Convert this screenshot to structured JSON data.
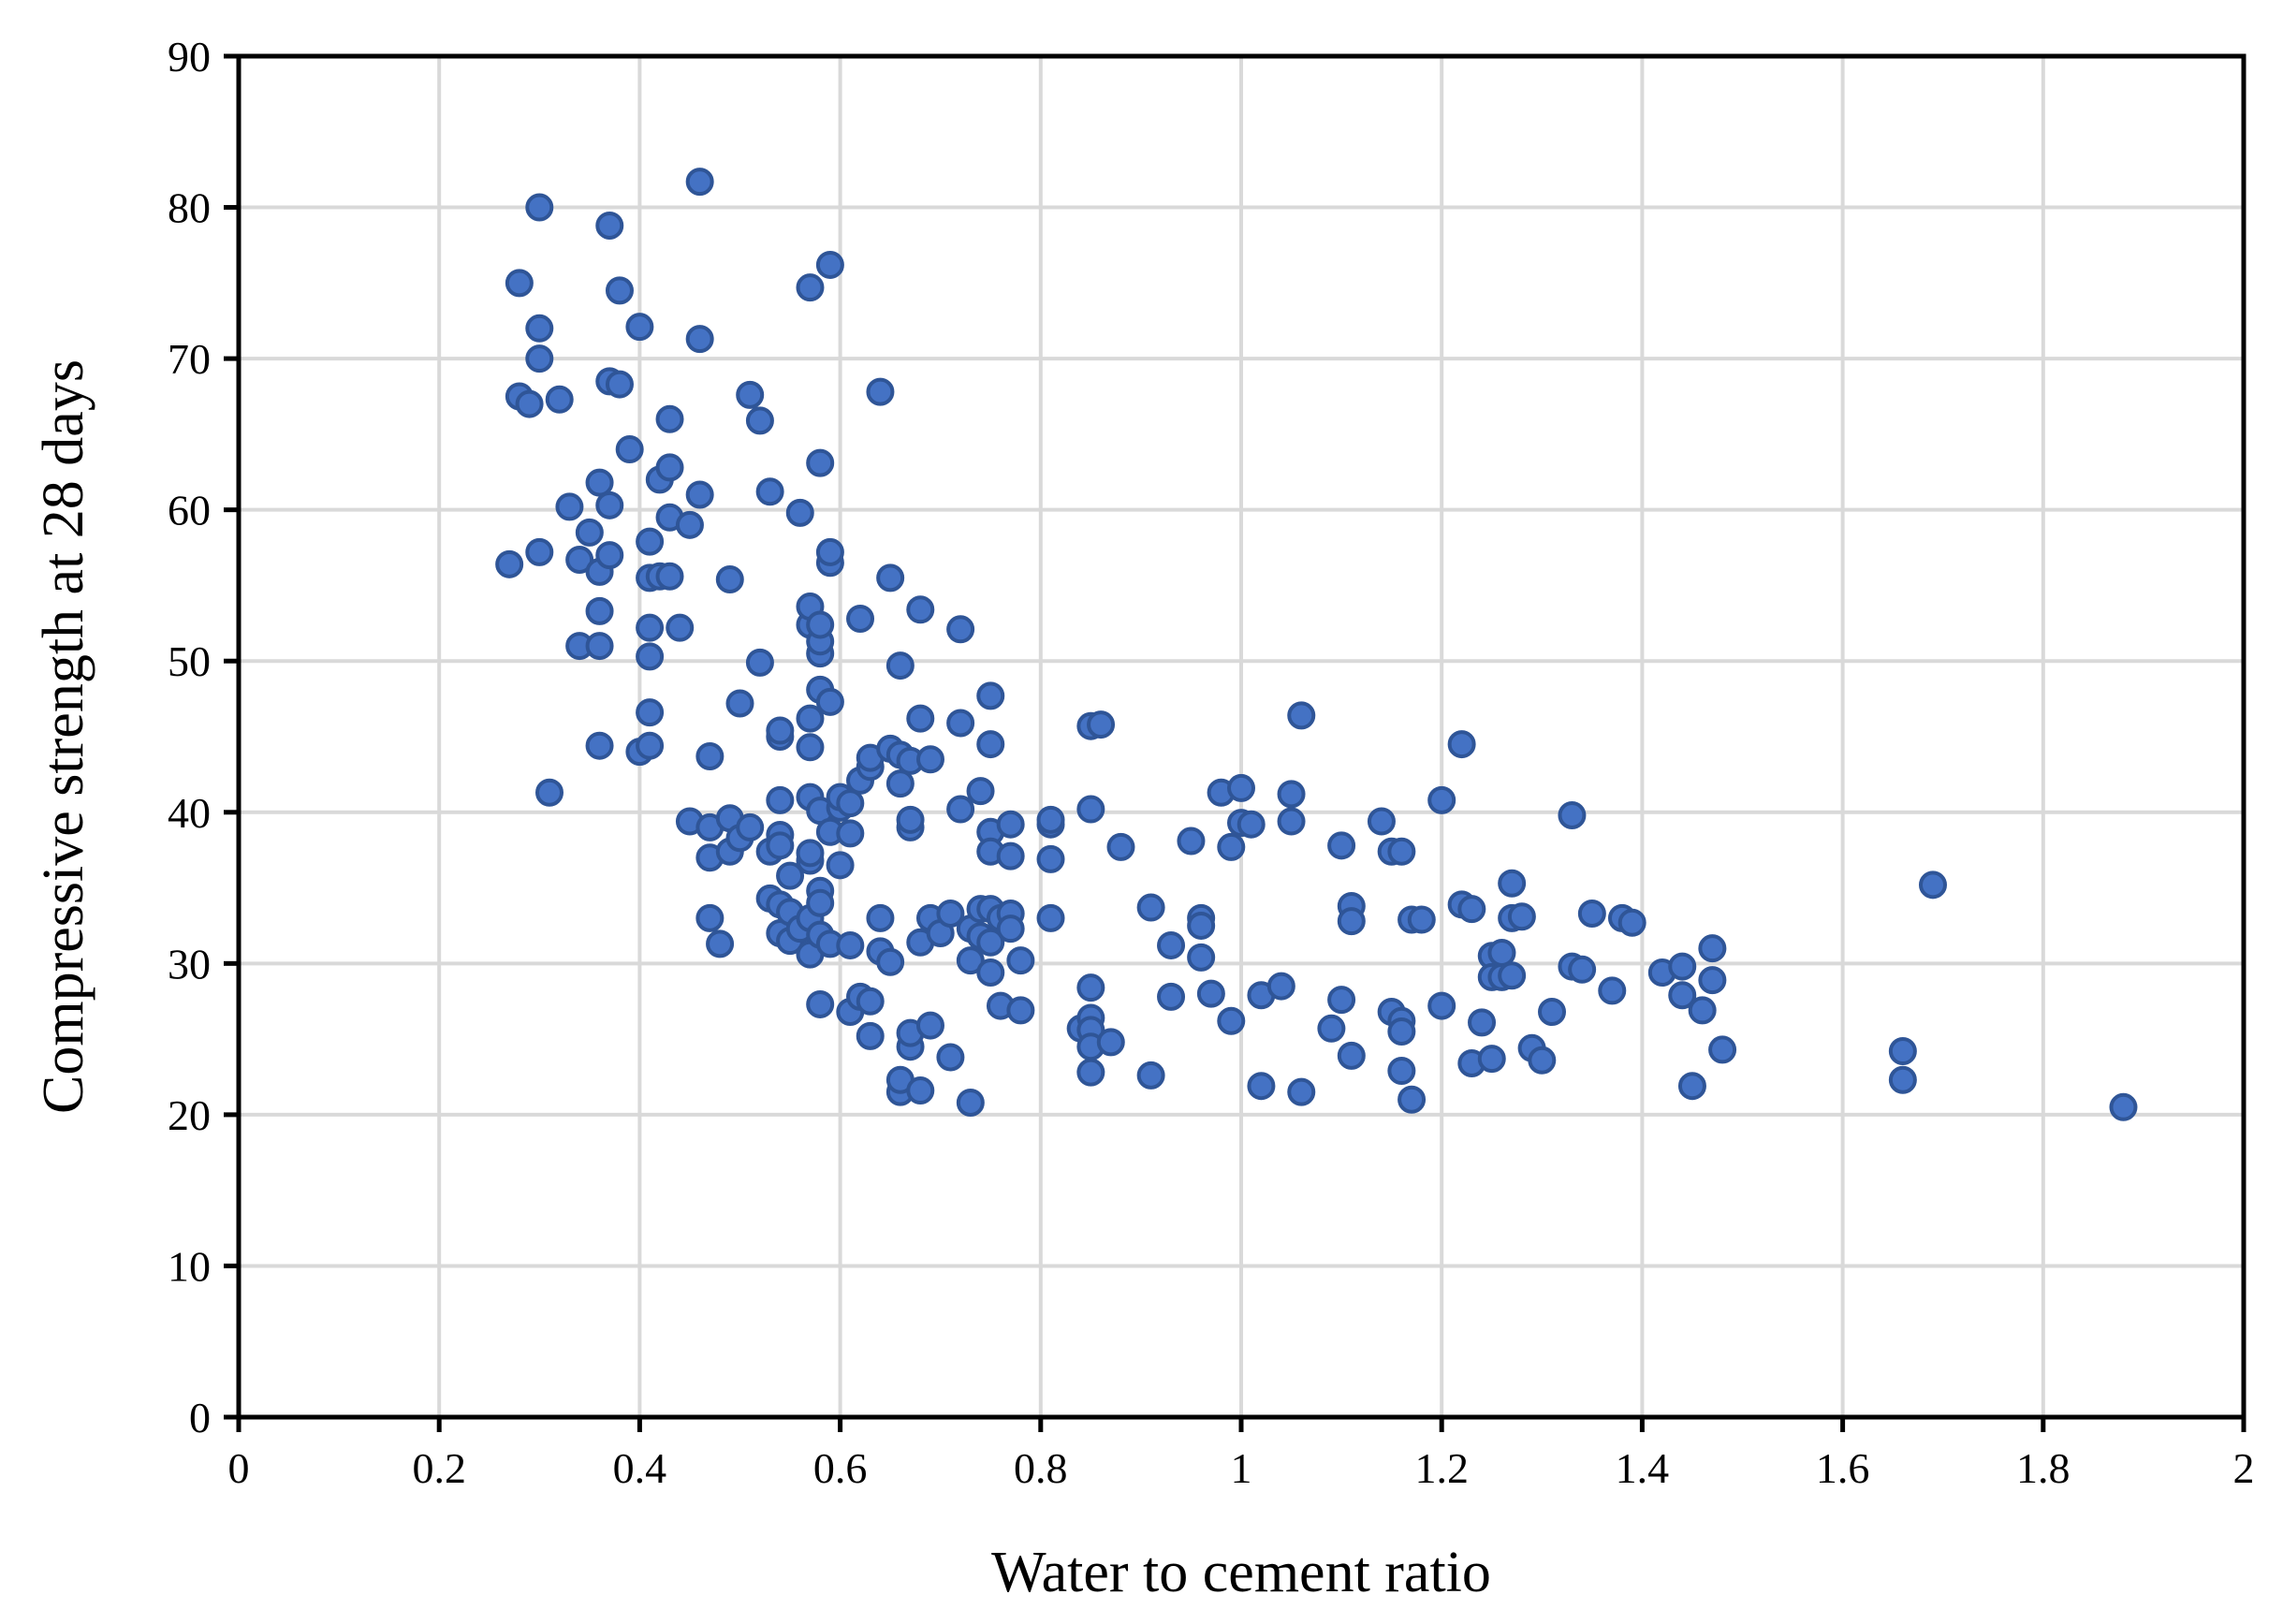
{
  "chart_data": {
    "type": "scatter",
    "title": "",
    "xlabel": "Water to cement ratio",
    "ylabel": "Compressive strength at 28 days",
    "xlim": [
      0,
      2
    ],
    "ylim": [
      0,
      90
    ],
    "x_ticks": [
      0,
      0.2,
      0.4,
      0.6,
      0.8,
      1,
      1.2,
      1.4,
      1.6,
      1.8,
      2
    ],
    "x_tick_labels": [
      "0",
      "0.2",
      "0.4",
      "0.6",
      "0.8",
      "1",
      "1.2",
      "1.4",
      "1.6",
      "1.8",
      "2"
    ],
    "y_ticks": [
      0,
      10,
      20,
      30,
      40,
      50,
      60,
      70,
      80,
      90
    ],
    "y_tick_labels": [
      "0",
      "10",
      "20",
      "30",
      "40",
      "50",
      "60",
      "70",
      "80",
      "90"
    ],
    "grid": true,
    "legend": "none",
    "marker_color": "#4472c4",
    "marker_edge_color": "#2f5597",
    "series": [
      {
        "points": [
          [
            0.27,
            56.4
          ],
          [
            0.28,
            67.5
          ],
          [
            0.28,
            75.0
          ],
          [
            0.29,
            67.0
          ],
          [
            0.3,
            57.2
          ],
          [
            0.3,
            70.0
          ],
          [
            0.3,
            72.0
          ],
          [
            0.3,
            80.0
          ],
          [
            0.31,
            41.3
          ],
          [
            0.32,
            67.3
          ],
          [
            0.33,
            60.2
          ],
          [
            0.34,
            51.0
          ],
          [
            0.34,
            56.7
          ],
          [
            0.35,
            58.5
          ],
          [
            0.36,
            61.8
          ],
          [
            0.36,
            55.9
          ],
          [
            0.36,
            53.3
          ],
          [
            0.36,
            51.0
          ],
          [
            0.36,
            44.4
          ],
          [
            0.37,
            57.0
          ],
          [
            0.37,
            60.3
          ],
          [
            0.37,
            68.5
          ],
          [
            0.37,
            78.8
          ],
          [
            0.38,
            74.5
          ],
          [
            0.38,
            68.3
          ],
          [
            0.39,
            64.0
          ],
          [
            0.4,
            72.1
          ],
          [
            0.4,
            44.0
          ],
          [
            0.41,
            44.4
          ],
          [
            0.41,
            46.6
          ],
          [
            0.41,
            50.3
          ],
          [
            0.41,
            52.2
          ],
          [
            0.41,
            55.5
          ],
          [
            0.41,
            57.9
          ],
          [
            0.42,
            62.0
          ],
          [
            0.42,
            55.6
          ],
          [
            0.43,
            66.0
          ],
          [
            0.43,
            59.5
          ],
          [
            0.43,
            55.6
          ],
          [
            0.43,
            62.8
          ],
          [
            0.44,
            52.2
          ],
          [
            0.45,
            39.4
          ],
          [
            0.45,
            59.0
          ],
          [
            0.46,
            61.0
          ],
          [
            0.46,
            71.3
          ],
          [
            0.46,
            81.7
          ],
          [
            0.47,
            43.7
          ],
          [
            0.47,
            39.0
          ],
          [
            0.47,
            37.0
          ],
          [
            0.47,
            33.0
          ],
          [
            0.48,
            31.3
          ],
          [
            0.49,
            37.4
          ],
          [
            0.49,
            39.6
          ],
          [
            0.49,
            55.4
          ],
          [
            0.5,
            38.3
          ],
          [
            0.5,
            47.2
          ],
          [
            0.51,
            39.0
          ],
          [
            0.51,
            67.6
          ],
          [
            0.52,
            49.9
          ],
          [
            0.52,
            65.9
          ],
          [
            0.53,
            61.2
          ],
          [
            0.53,
            34.3
          ],
          [
            0.53,
            37.4
          ],
          [
            0.54,
            38.5
          ],
          [
            0.54,
            45.0
          ],
          [
            0.54,
            45.4
          ],
          [
            0.54,
            40.8
          ],
          [
            0.54,
            37.8
          ],
          [
            0.54,
            33.9
          ],
          [
            0.54,
            32.0
          ],
          [
            0.55,
            31.5
          ],
          [
            0.55,
            33.4
          ],
          [
            0.55,
            35.8
          ],
          [
            0.56,
            32.3
          ],
          [
            0.56,
            59.8
          ],
          [
            0.57,
            30.6
          ],
          [
            0.57,
            33.0
          ],
          [
            0.57,
            36.8
          ],
          [
            0.57,
            37.3
          ],
          [
            0.57,
            41.0
          ],
          [
            0.57,
            44.3
          ],
          [
            0.57,
            46.2
          ],
          [
            0.57,
            52.4
          ],
          [
            0.57,
            53.6
          ],
          [
            0.57,
            74.7
          ],
          [
            0.58,
            27.3
          ],
          [
            0.58,
            31.9
          ],
          [
            0.58,
            34.8
          ],
          [
            0.58,
            34.0
          ],
          [
            0.58,
            40.1
          ],
          [
            0.58,
            48.1
          ],
          [
            0.58,
            50.5
          ],
          [
            0.58,
            51.3
          ],
          [
            0.58,
            52.4
          ],
          [
            0.58,
            63.1
          ],
          [
            0.59,
            31.3
          ],
          [
            0.59,
            38.7
          ],
          [
            0.59,
            47.3
          ],
          [
            0.59,
            56.5
          ],
          [
            0.59,
            57.2
          ],
          [
            0.59,
            76.2
          ],
          [
            0.6,
            36.5
          ],
          [
            0.6,
            40.3
          ],
          [
            0.6,
            41.0
          ],
          [
            0.61,
            31.2
          ],
          [
            0.61,
            38.6
          ],
          [
            0.61,
            40.6
          ],
          [
            0.61,
            26.8
          ],
          [
            0.62,
            42.1
          ],
          [
            0.62,
            52.8
          ],
          [
            0.62,
            27.8
          ],
          [
            0.63,
            25.2
          ],
          [
            0.63,
            27.5
          ],
          [
            0.63,
            43.0
          ],
          [
            0.63,
            43.6
          ],
          [
            0.64,
            30.8
          ],
          [
            0.64,
            33.0
          ],
          [
            0.64,
            67.8
          ],
          [
            0.65,
            30.1
          ],
          [
            0.65,
            55.5
          ],
          [
            0.65,
            44.2
          ],
          [
            0.66,
            21.5
          ],
          [
            0.66,
            41.9
          ],
          [
            0.66,
            43.8
          ],
          [
            0.66,
            49.7
          ],
          [
            0.66,
            22.3
          ],
          [
            0.67,
            24.5
          ],
          [
            0.67,
            25.4
          ],
          [
            0.67,
            39.0
          ],
          [
            0.67,
            39.5
          ],
          [
            0.67,
            43.4
          ],
          [
            0.68,
            21.6
          ],
          [
            0.68,
            46.2
          ],
          [
            0.68,
            53.4
          ],
          [
            0.68,
            31.4
          ],
          [
            0.69,
            33.0
          ],
          [
            0.69,
            43.5
          ],
          [
            0.69,
            25.9
          ],
          [
            0.7,
            32.0
          ],
          [
            0.71,
            33.3
          ],
          [
            0.71,
            23.8
          ],
          [
            0.72,
            52.1
          ],
          [
            0.72,
            45.9
          ],
          [
            0.72,
            40.2
          ],
          [
            0.73,
            30.2
          ],
          [
            0.73,
            32.3
          ],
          [
            0.73,
            20.8
          ],
          [
            0.74,
            41.4
          ],
          [
            0.74,
            33.6
          ],
          [
            0.74,
            31.8
          ],
          [
            0.75,
            33.6
          ],
          [
            0.75,
            31.4
          ],
          [
            0.75,
            29.4
          ],
          [
            0.75,
            38.7
          ],
          [
            0.75,
            37.4
          ],
          [
            0.75,
            44.5
          ],
          [
            0.75,
            47.7
          ],
          [
            0.76,
            33.0
          ],
          [
            0.76,
            27.2
          ],
          [
            0.77,
            37.1
          ],
          [
            0.77,
            33.3
          ],
          [
            0.77,
            32.3
          ],
          [
            0.77,
            39.2
          ],
          [
            0.78,
            26.9
          ],
          [
            0.78,
            30.2
          ],
          [
            0.81,
            39.2
          ],
          [
            0.81,
            33.0
          ],
          [
            0.81,
            36.9
          ],
          [
            0.81,
            39.5
          ],
          [
            0.84,
            25.7
          ],
          [
            0.85,
            28.4
          ],
          [
            0.85,
            26.4
          ],
          [
            0.85,
            25.6
          ],
          [
            0.85,
            24.5
          ],
          [
            0.85,
            22.8
          ],
          [
            0.85,
            40.2
          ],
          [
            0.85,
            45.7
          ],
          [
            0.86,
            45.8
          ],
          [
            0.87,
            24.8
          ],
          [
            0.88,
            37.7
          ],
          [
            0.91,
            33.7
          ],
          [
            0.91,
            22.6
          ],
          [
            0.93,
            31.2
          ],
          [
            0.93,
            27.8
          ],
          [
            0.95,
            38.1
          ],
          [
            0.96,
            33.0
          ],
          [
            0.96,
            32.5
          ],
          [
            0.96,
            30.4
          ],
          [
            0.97,
            28.0
          ],
          [
            0.98,
            41.3
          ],
          [
            0.99,
            26.2
          ],
          [
            0.99,
            37.7
          ],
          [
            1.0,
            41.6
          ],
          [
            1.0,
            39.3
          ],
          [
            1.01,
            39.2
          ],
          [
            1.02,
            21.9
          ],
          [
            1.02,
            27.9
          ],
          [
            1.04,
            28.5
          ],
          [
            1.05,
            41.2
          ],
          [
            1.05,
            39.4
          ],
          [
            1.06,
            46.4
          ],
          [
            1.06,
            21.5
          ],
          [
            1.09,
            25.7
          ],
          [
            1.1,
            27.6
          ],
          [
            1.1,
            37.8
          ],
          [
            1.11,
            33.8
          ],
          [
            1.11,
            32.8
          ],
          [
            1.11,
            23.9
          ],
          [
            1.14,
            39.4
          ],
          [
            1.15,
            37.4
          ],
          [
            1.15,
            26.8
          ],
          [
            1.16,
            37.4
          ],
          [
            1.16,
            22.9
          ],
          [
            1.16,
            26.2
          ],
          [
            1.16,
            25.5
          ],
          [
            1.17,
            21.0
          ],
          [
            1.17,
            32.9
          ],
          [
            1.18,
            32.9
          ],
          [
            1.2,
            40.8
          ],
          [
            1.2,
            27.2
          ],
          [
            1.22,
            44.5
          ],
          [
            1.22,
            33.9
          ],
          [
            1.23,
            33.6
          ],
          [
            1.23,
            23.4
          ],
          [
            1.24,
            26.1
          ],
          [
            1.25,
            30.5
          ],
          [
            1.25,
            29.1
          ],
          [
            1.25,
            23.7
          ],
          [
            1.26,
            29.1
          ],
          [
            1.26,
            30.7
          ],
          [
            1.27,
            35.3
          ],
          [
            1.27,
            33.0
          ],
          [
            1.27,
            29.2
          ],
          [
            1.28,
            33.1
          ],
          [
            1.29,
            24.4
          ],
          [
            1.3,
            23.6
          ],
          [
            1.31,
            26.8
          ],
          [
            1.33,
            29.8
          ],
          [
            1.33,
            39.8
          ],
          [
            1.34,
            29.6
          ],
          [
            1.35,
            33.3
          ],
          [
            1.37,
            28.2
          ],
          [
            1.38,
            33.0
          ],
          [
            1.39,
            32.7
          ],
          [
            1.42,
            29.4
          ],
          [
            1.44,
            29.8
          ],
          [
            1.44,
            27.9
          ],
          [
            1.45,
            21.9
          ],
          [
            1.46,
            26.9
          ],
          [
            1.47,
            28.9
          ],
          [
            1.47,
            31.0
          ],
          [
            1.48,
            24.3
          ],
          [
            1.66,
            22.3
          ],
          [
            1.66,
            24.2
          ],
          [
            1.69,
            35.2
          ],
          [
            1.88,
            20.5
          ]
        ]
      }
    ]
  }
}
